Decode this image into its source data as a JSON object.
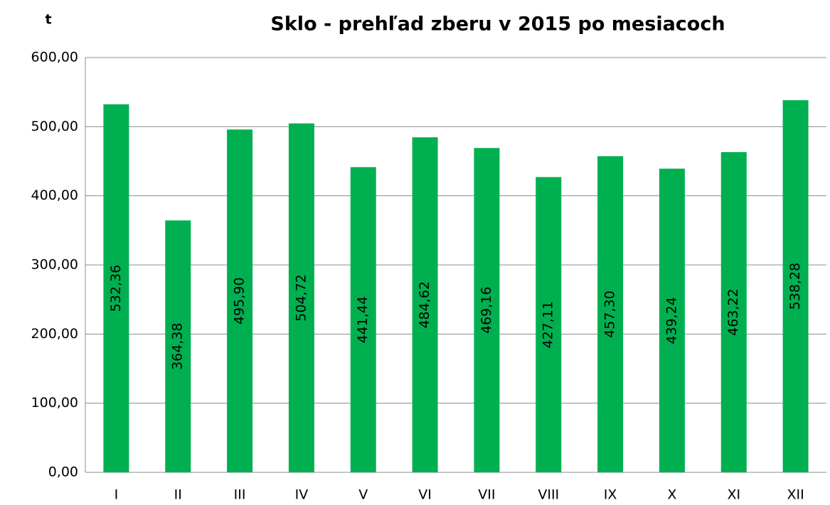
{
  "chart_data": {
    "type": "bar",
    "title": "Sklo - prehľad zberu v 2015 po mesiacoch",
    "y_label": "t",
    "categories": [
      "I",
      "II",
      "III",
      "IV",
      "V",
      "VI",
      "VII",
      "VIII",
      "IX",
      "X",
      "XI",
      "XII"
    ],
    "values": [
      532.36,
      364.38,
      495.9,
      504.72,
      441.44,
      484.62,
      469.16,
      427.11,
      457.3,
      439.24,
      463.22,
      538.28
    ],
    "value_labels": [
      "532,36",
      "364,38",
      "495,90",
      "504,72",
      "441,44",
      "484,62",
      "469,16",
      "427,11",
      "457,30",
      "439,24",
      "463,22",
      "538,28"
    ],
    "color": "#00b050",
    "ylim": [
      0,
      600
    ],
    "yticks": [
      {
        "value": 0,
        "label": "0,00"
      },
      {
        "value": 100,
        "label": "100,00"
      },
      {
        "value": 200,
        "label": "200,00"
      },
      {
        "value": 300,
        "label": "300,00"
      },
      {
        "value": 400,
        "label": "400,00"
      },
      {
        "value": 500,
        "label": "500,00"
      },
      {
        "value": 600,
        "label": "600,00"
      }
    ],
    "grid": true
  }
}
